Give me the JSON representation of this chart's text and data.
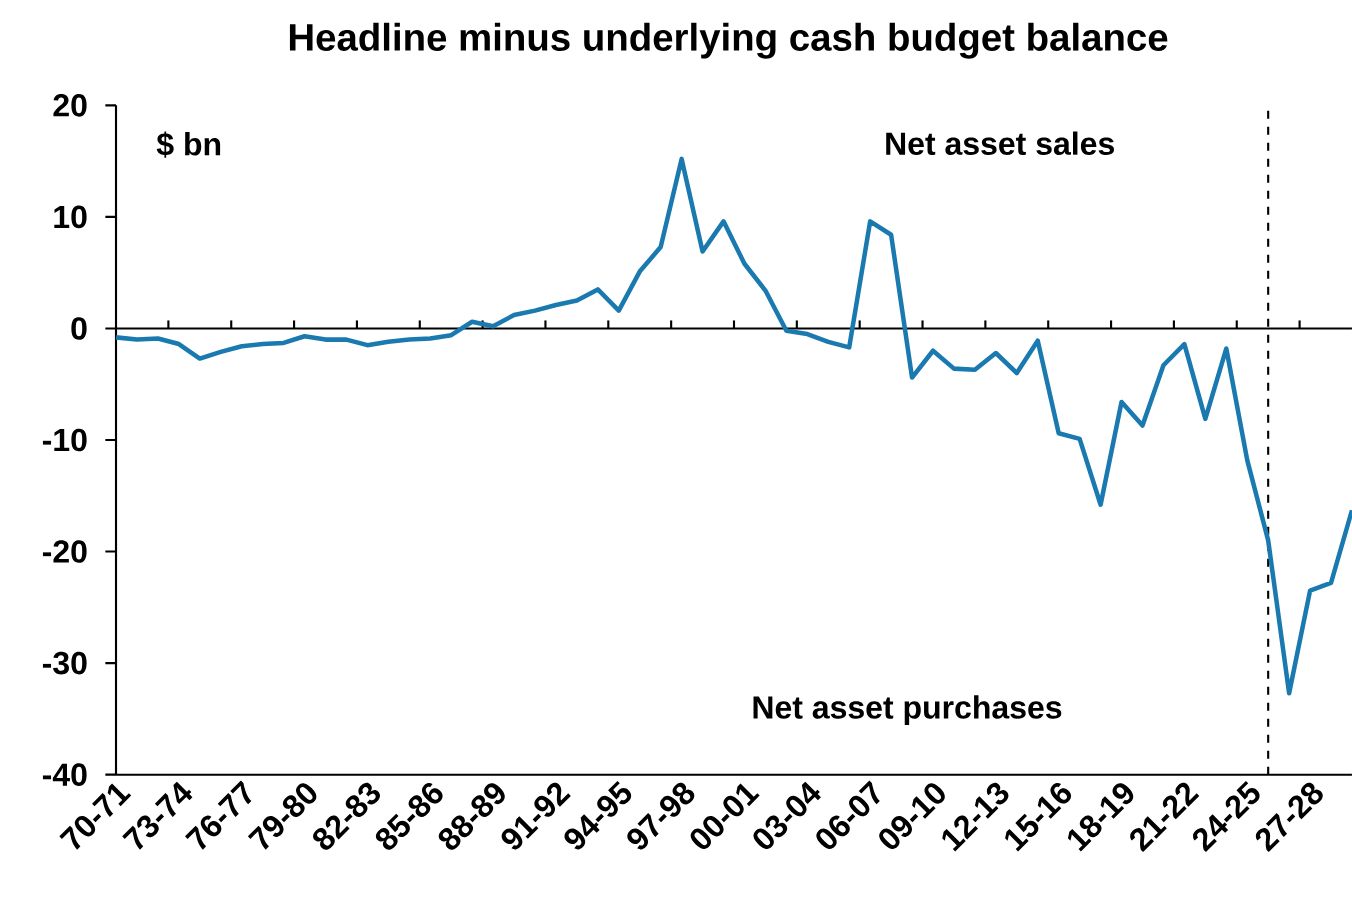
{
  "chart_data": {
    "type": "line",
    "title": "Headline minus underlying cash budget balance",
    "ylabel": "$ bn",
    "categories": [
      "70-71",
      null,
      null,
      "73-74",
      null,
      null,
      "76-77",
      null,
      null,
      "79-80",
      null,
      null,
      "82-83",
      null,
      null,
      "85-86",
      null,
      null,
      "88-89",
      null,
      null,
      "91-92",
      null,
      null,
      "94-95",
      null,
      null,
      "97-98",
      null,
      null,
      "00-01",
      null,
      null,
      "03-04",
      null,
      null,
      "06-07",
      null,
      null,
      "09-10",
      null,
      null,
      "12-13",
      null,
      null,
      "15-16",
      null,
      null,
      "18-19",
      null,
      null,
      "21-22",
      null,
      null,
      "24-25",
      null,
      null,
      "27-28",
      null,
      null
    ],
    "series": [
      {
        "color": "#1a7ab0",
        "values": [
          -0.8,
          -1.0,
          -0.9,
          -1.4,
          -2.7,
          -2.1,
          -1.6,
          -1.4,
          -1.3,
          -0.7,
          -1.0,
          -1.0,
          -1.5,
          -1.2,
          -1.0,
          -0.9,
          -0.6,
          0.6,
          0.2,
          1.2,
          1.6,
          2.1,
          2.5,
          3.5,
          1.6,
          5.1,
          7.3,
          15.2,
          6.9,
          9.6,
          5.8,
          3.4,
          -0.2,
          -0.5,
          -1.2,
          -1.7,
          9.6,
          8.4,
          -4.4,
          -2.0,
          -3.6,
          -3.7,
          -2.2,
          -4.0,
          -1.1,
          -9.4,
          -9.9,
          -15.8,
          -6.6,
          -8.7,
          -3.3,
          -1.4,
          -8.1,
          -1.8,
          -11.8,
          -19.0,
          -32.7,
          -23.5,
          -22.8,
          -16.3
        ]
      }
    ],
    "ylim": [
      -40,
      20
    ],
    "yticks": [
      -40,
      -30,
      -20,
      -10,
      0,
      10,
      20
    ],
    "ref_lines": [
      {
        "axis": "y",
        "value": 0,
        "line_style": "solid",
        "color": "#000000"
      }
    ],
    "annotations": [
      "Net asset sales",
      "Net asset purchases"
    ],
    "grid": false,
    "marker": "none",
    "line_style": "solid"
  }
}
